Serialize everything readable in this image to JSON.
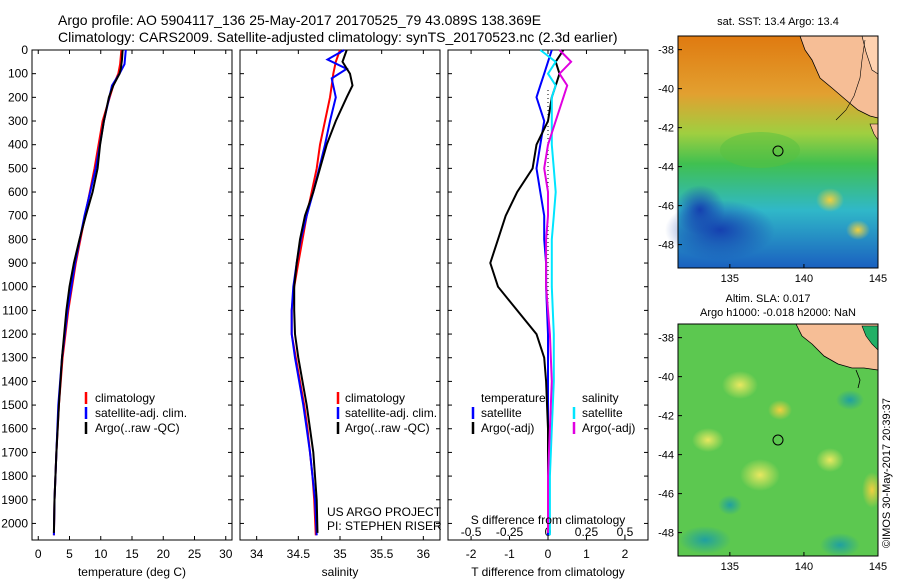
{
  "title_line1": "Argo profile: AO 5904117_136 25-May-2017 20170525_79 43.089S 138.369E",
  "title_line2": "Climatology: CARS2009. Satellite-adjusted climatology: synTS_20170523.nc (2.3d earlier)",
  "depth_ticks": [
    "0",
    "100",
    "200",
    "300",
    "400",
    "500",
    "600",
    "700",
    "800",
    "900",
    "1000",
    "1100",
    "1200",
    "1300",
    "1400",
    "1500",
    "1600",
    "1700",
    "1800",
    "1900",
    "2000"
  ],
  "colors": {
    "climatology": "#ff0000",
    "satellite": "#0000ff",
    "argo": "#000000",
    "sat_cyan": "#00e5ff",
    "argo_magenta": "#e000e0"
  },
  "chart_data": [
    {
      "type": "line",
      "xlabel": "temperature (deg C)",
      "xlim": [
        -1,
        31
      ],
      "ylim": [
        2070,
        0
      ],
      "x_ticks": [
        "0",
        "5",
        "10",
        "15",
        "20",
        "25",
        "30"
      ],
      "legend": [
        "climatology",
        "satellite-adj. clim.",
        "Argo(..raw -QC)"
      ],
      "series": [
        {
          "name": "climatology",
          "color": "#ff0000",
          "depth": [
            0,
            60,
            100,
            150,
            300,
            500,
            700,
            900,
            1100,
            1300,
            1500,
            1700,
            1900,
            2050
          ],
          "values": [
            13.3,
            13.1,
            12.8,
            12.0,
            10.3,
            9.0,
            7.5,
            6.0,
            4.8,
            3.9,
            3.3,
            2.9,
            2.6,
            2.5
          ]
        },
        {
          "name": "satellite-adj. clim.",
          "color": "#0000ff",
          "depth": [
            0,
            60,
            100,
            150,
            300,
            500,
            700,
            900,
            1100,
            1300,
            1500,
            1700,
            1900,
            2050
          ],
          "values": [
            14.0,
            13.8,
            13.0,
            11.8,
            10.5,
            9.2,
            7.4,
            5.9,
            4.7,
            3.8,
            3.2,
            2.9,
            2.6,
            2.5
          ]
        },
        {
          "name": "Argo(..raw -QC)",
          "color": "#000000",
          "depth": [
            0,
            40,
            80,
            100,
            150,
            200,
            300,
            400,
            500,
            600,
            700,
            800,
            900,
            1000,
            1100,
            1300,
            1500,
            1700,
            1900,
            2040
          ],
          "values": [
            13.5,
            13.4,
            13.2,
            13.0,
            12.0,
            11.3,
            10.5,
            9.9,
            9.5,
            8.7,
            7.6,
            6.6,
            5.7,
            5.0,
            4.5,
            3.8,
            3.3,
            2.9,
            2.6,
            2.5
          ]
        }
      ]
    },
    {
      "type": "line",
      "xlabel": "salinity",
      "xlim": [
        33.8,
        36.2
      ],
      "ylim": [
        2070,
        0
      ],
      "x_ticks": [
        "34",
        "34.5",
        "35",
        "35.5",
        "36"
      ],
      "legend": [
        "climatology",
        "satellite-adj. clim.",
        "Argo(..raw -QC)"
      ],
      "annotation": [
        "US ARGO PROJECT",
        "PI: STEPHEN RISER"
      ],
      "series": [
        {
          "name": "climatology",
          "color": "#ff0000",
          "depth": [
            0,
            50,
            100,
            150,
            200,
            300,
            400,
            500,
            600,
            700,
            800,
            900,
            1000,
            1100,
            1200,
            1300,
            1400,
            1500,
            1600,
            1700,
            1800,
            1900,
            2050
          ],
          "values": [
            35.0,
            34.95,
            34.92,
            34.9,
            34.88,
            34.82,
            34.76,
            34.72,
            34.66,
            34.6,
            34.55,
            34.5,
            34.45,
            34.42,
            34.42,
            34.47,
            34.52,
            34.57,
            34.61,
            34.64,
            34.67,
            34.69,
            34.71
          ]
        },
        {
          "name": "satellite-adj. clim.",
          "color": "#0000ff",
          "depth": [
            0,
            40,
            80,
            120,
            200,
            300,
            400,
            500,
            600,
            700,
            800,
            900,
            1000,
            1100,
            1200,
            1300,
            1400,
            1500,
            1600,
            1700,
            1800,
            1900,
            2050
          ],
          "values": [
            35.05,
            34.85,
            35.08,
            34.9,
            34.95,
            34.88,
            34.82,
            34.75,
            34.68,
            34.6,
            34.53,
            34.48,
            34.44,
            34.42,
            34.42,
            34.46,
            34.51,
            34.56,
            34.6,
            34.64,
            34.67,
            34.7,
            34.72
          ]
        },
        {
          "name": "Argo(..raw -QC)",
          "color": "#000000",
          "depth": [
            0,
            50,
            100,
            150,
            200,
            300,
            400,
            500,
            600,
            700,
            800,
            900,
            1000,
            1100,
            1200,
            1300,
            1400,
            1500,
            1600,
            1700,
            1800,
            1900,
            2040
          ],
          "values": [
            35.08,
            35.03,
            35.12,
            35.15,
            35.08,
            34.95,
            34.84,
            34.76,
            34.68,
            34.58,
            34.52,
            34.48,
            34.45,
            34.45,
            34.46,
            34.5,
            34.55,
            34.6,
            34.64,
            34.68,
            34.7,
            34.72,
            34.73
          ]
        }
      ]
    },
    {
      "type": "line",
      "xlabel": "T difference from climatology",
      "xlabel_top": "S difference from climatology",
      "xlim": [
        -2.6,
        2.6
      ],
      "ylim": [
        2070,
        0
      ],
      "x_ticks": [
        "-2",
        "-1",
        "0",
        "1",
        "2"
      ],
      "x_ticks_top": [
        "-0.5",
        "-0.25",
        "0",
        "0.25",
        "0.5"
      ],
      "legend": [
        "temperature",
        "satellite",
        "Argo(-adj)",
        "salinity",
        "satellite",
        "Argo(-adj)"
      ],
      "series": [
        {
          "name": "satellite",
          "color": "#0000ff",
          "depth": [
            0,
            50,
            100,
            150,
            200,
            300,
            400,
            500,
            600,
            700,
            800,
            900,
            1000,
            1200,
            1500,
            1800,
            2050
          ],
          "values": [
            0.1,
            0.0,
            -0.1,
            -0.2,
            -0.3,
            -0.1,
            -0.2,
            -0.3,
            -0.2,
            -0.1,
            -0.1,
            -0.05,
            -0.05,
            0.0,
            0.0,
            0.0,
            0.0
          ]
        },
        {
          "name": "Argo(-adj)",
          "color": "#000000",
          "depth": [
            0,
            50,
            100,
            150,
            200,
            300,
            400,
            500,
            600,
            700,
            800,
            900,
            1000,
            1100,
            1200,
            1300,
            1400,
            1600,
            1800,
            2040
          ],
          "values": [
            0.4,
            0.2,
            0.3,
            0.2,
            0.1,
            0.0,
            -0.3,
            -0.4,
            -0.8,
            -1.1,
            -1.3,
            -1.5,
            -1.3,
            -0.8,
            -0.3,
            -0.1,
            -0.05,
            0.0,
            0.0,
            0.0
          ]
        },
        {
          "name": "satellite",
          "color": "#00e5ff",
          "depth": [
            0,
            50,
            100,
            150,
            200,
            300,
            400,
            500,
            600,
            700,
            800,
            900,
            1000,
            1200,
            1400,
            1600,
            1800,
            2050
          ],
          "values": [
            -0.2,
            0.2,
            0.0,
            0.2,
            0.1,
            0.1,
            0.1,
            0.15,
            0.2,
            0.15,
            0.1,
            0.1,
            0.1,
            0.15,
            0.15,
            0.1,
            0.05,
            0.05
          ]
        },
        {
          "name": "Argo(-adj)",
          "color": "#e000e0",
          "depth": [
            0,
            50,
            100,
            150,
            200,
            300,
            400,
            500,
            600,
            700,
            800,
            900,
            1000,
            1200,
            1400,
            1600,
            1800,
            2040
          ],
          "values": [
            0.3,
            0.6,
            0.3,
            0.5,
            0.4,
            0.2,
            0.0,
            -0.1,
            0.0,
            0.0,
            -0.05,
            -0.05,
            -0.05,
            0.05,
            0.1,
            0.05,
            0.0,
            0.0
          ]
        }
      ]
    }
  ],
  "map_top": {
    "title": "sat. SST: 13.4  Argo: 13.4",
    "lon_ticks": [
      "135",
      "140",
      "145"
    ],
    "lat_ticks": [
      "-38",
      "-40",
      "-42",
      "-44",
      "-46",
      "-48"
    ]
  },
  "map_bottom": {
    "title1": "Altim. SLA: 0.017",
    "title2": "Argo h1000: -0.018 h2000: NaN",
    "lon_ticks": [
      "135",
      "140",
      "145"
    ],
    "lat_ticks": [
      "-38",
      "-40",
      "-42",
      "-44",
      "-46",
      "-48"
    ]
  },
  "credit": "©IMOS 30-May-2017 20:39:37"
}
